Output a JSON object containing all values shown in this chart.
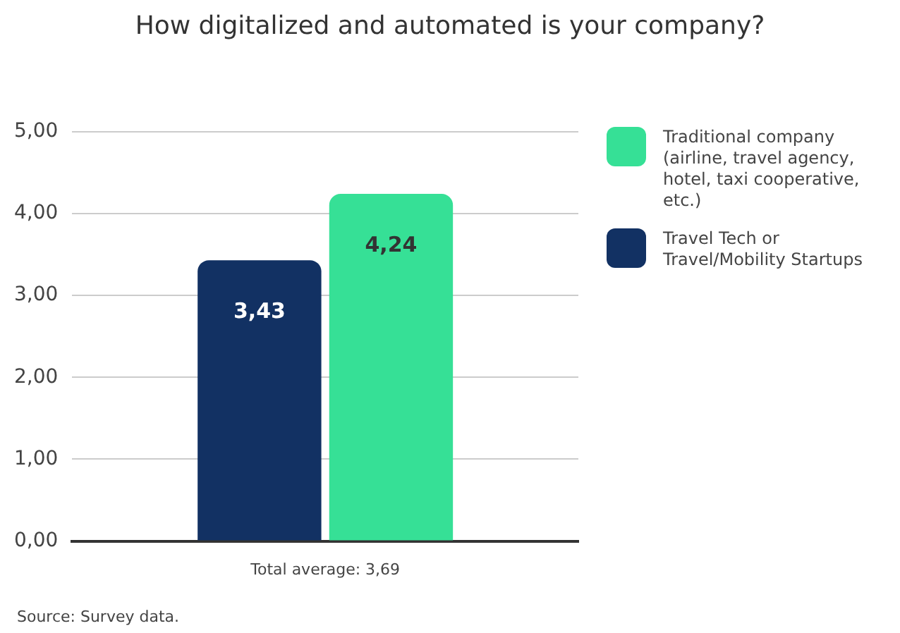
{
  "chart_data": {
    "type": "bar",
    "title": "How digitalized and automated is your company?",
    "categories": [
      "Total average: 3,69"
    ],
    "series": [
      {
        "name": "Travel Tech or Travel/Mobility Startups",
        "color": "#123163",
        "values": [
          3.43
        ],
        "value_labels": [
          "3,43"
        ]
      },
      {
        "name": "Traditional company (airline, travel agency, hotel, taxi cooperative, etc.)",
        "color": "#36e096",
        "values": [
          4.24
        ],
        "value_labels": [
          "4,24"
        ]
      }
    ],
    "ylim": [
      0,
      5
    ],
    "yticks": [
      {
        "value": 0,
        "label": "0,00"
      },
      {
        "value": 1,
        "label": "1,00"
      },
      {
        "value": 2,
        "label": "2,00"
      },
      {
        "value": 3,
        "label": "3,00"
      },
      {
        "value": 4,
        "label": "4,00"
      },
      {
        "value": 5,
        "label": "5,00"
      }
    ],
    "grid": "y",
    "legend": "right",
    "annotations": [
      "Source: Survey data."
    ]
  }
}
